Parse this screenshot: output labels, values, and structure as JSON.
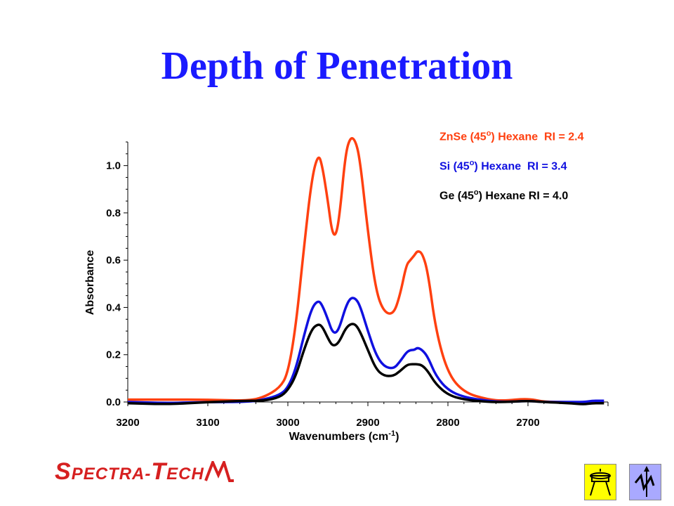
{
  "slide": {
    "title": "Depth of Penetration"
  },
  "logo": {
    "text_main": "PECTRA",
    "text_dash": "-",
    "text_t": "T",
    "text_tail": "ECH",
    "text_s": "S",
    "colors": {
      "text": "#d62020"
    }
  },
  "nav": {
    "left_icon": "laboratory-apparatus-icon",
    "right_icon": "lightning-arrow-icon"
  },
  "chart_data": {
    "type": "line",
    "title": "",
    "xlabel": "Wavenumbers (cm-1)",
    "xlabel_main": "Wavenumbers (cm",
    "xlabel_sup": "-1",
    "xlabel_end": ")",
    "ylabel": "Absorbance",
    "xlim": [
      3200,
      2600
    ],
    "ylim": [
      0.0,
      1.1
    ],
    "x_ticks": [
      3200,
      3100,
      3000,
      2900,
      2800,
      2700
    ],
    "y_ticks": [
      0.0,
      0.2,
      0.4,
      0.6,
      0.8,
      1.0
    ],
    "x_reversed": true,
    "grid": false,
    "legend_position": "top-right",
    "series": [
      {
        "name": "ZnSe (45o) Hexane  RI = 2.4",
        "label_parts": [
          "ZnSe (45",
          "o",
          ") Hexane  RI = 2.4"
        ],
        "color": "#ff4010",
        "x": [
          3200,
          3150,
          3100,
          3050,
          3030,
          3010,
          3000,
          2990,
          2980,
          2970,
          2962,
          2957,
          2950,
          2945,
          2940,
          2935,
          2928,
          2922,
          2916,
          2910,
          2900,
          2890,
          2880,
          2868,
          2860,
          2852,
          2847,
          2842,
          2838,
          2832,
          2825,
          2815,
          2800,
          2780,
          2750,
          2730,
          2700,
          2680,
          2650,
          2630,
          2620,
          2610,
          2605
        ],
        "y": [
          0.01,
          0.01,
          0.01,
          0.005,
          0.02,
          0.06,
          0.12,
          0.32,
          0.65,
          0.95,
          1.05,
          1.0,
          0.85,
          0.72,
          0.7,
          0.8,
          1.05,
          1.12,
          1.11,
          1.03,
          0.72,
          0.47,
          0.38,
          0.37,
          0.45,
          0.58,
          0.6,
          0.62,
          0.64,
          0.63,
          0.55,
          0.3,
          0.12,
          0.04,
          0.01,
          0.005,
          0.015,
          0.0,
          0.0,
          -0.005,
          0.0,
          0.0,
          0.0
        ]
      },
      {
        "name": "Si (45o) Hexane  RI = 3.4",
        "label_parts": [
          "Si (45",
          "o",
          ") Hexane  RI = 3.4"
        ],
        "color": "#1010e0",
        "x": [
          3200,
          3150,
          3100,
          3050,
          3030,
          3010,
          3000,
          2990,
          2980,
          2970,
          2962,
          2957,
          2950,
          2945,
          2940,
          2935,
          2928,
          2922,
          2916,
          2910,
          2900,
          2890,
          2880,
          2868,
          2860,
          2852,
          2847,
          2842,
          2838,
          2832,
          2825,
          2815,
          2800,
          2780,
          2750,
          2730,
          2700,
          2680,
          2650,
          2630,
          2620,
          2610,
          2605
        ],
        "y": [
          0.0,
          -0.005,
          0.0,
          0.0,
          0.01,
          0.03,
          0.06,
          0.14,
          0.28,
          0.4,
          0.43,
          0.41,
          0.35,
          0.3,
          0.29,
          0.32,
          0.4,
          0.44,
          0.44,
          0.41,
          0.3,
          0.2,
          0.15,
          0.14,
          0.17,
          0.21,
          0.22,
          0.22,
          0.23,
          0.22,
          0.19,
          0.11,
          0.05,
          0.02,
          0.005,
          0.0,
          0.005,
          0.0,
          0.0,
          0.0,
          0.005,
          0.005,
          0.005
        ]
      },
      {
        "name": "Ge (45o) Hexane RI = 4.0",
        "label_parts": [
          "Ge (45",
          "o",
          ") Hexane RI = 4.0"
        ],
        "color": "#000000",
        "x": [
          3200,
          3150,
          3100,
          3050,
          3030,
          3010,
          3000,
          2990,
          2980,
          2970,
          2962,
          2957,
          2950,
          2945,
          2940,
          2935,
          2928,
          2922,
          2916,
          2910,
          2900,
          2890,
          2880,
          2868,
          2860,
          2852,
          2847,
          2842,
          2838,
          2832,
          2825,
          2815,
          2800,
          2780,
          2750,
          2730,
          2700,
          2680,
          2650,
          2630,
          2620,
          2610,
          2605
        ],
        "y": [
          -0.005,
          -0.01,
          0.0,
          0.005,
          0.005,
          0.02,
          0.05,
          0.11,
          0.22,
          0.31,
          0.33,
          0.32,
          0.27,
          0.24,
          0.24,
          0.26,
          0.31,
          0.33,
          0.33,
          0.3,
          0.22,
          0.14,
          0.11,
          0.11,
          0.13,
          0.155,
          0.16,
          0.16,
          0.16,
          0.155,
          0.13,
          0.075,
          0.03,
          0.01,
          0.0,
          0.0,
          0.005,
          0.0,
          -0.005,
          -0.01,
          -0.005,
          -0.005,
          -0.005
        ]
      }
    ]
  }
}
